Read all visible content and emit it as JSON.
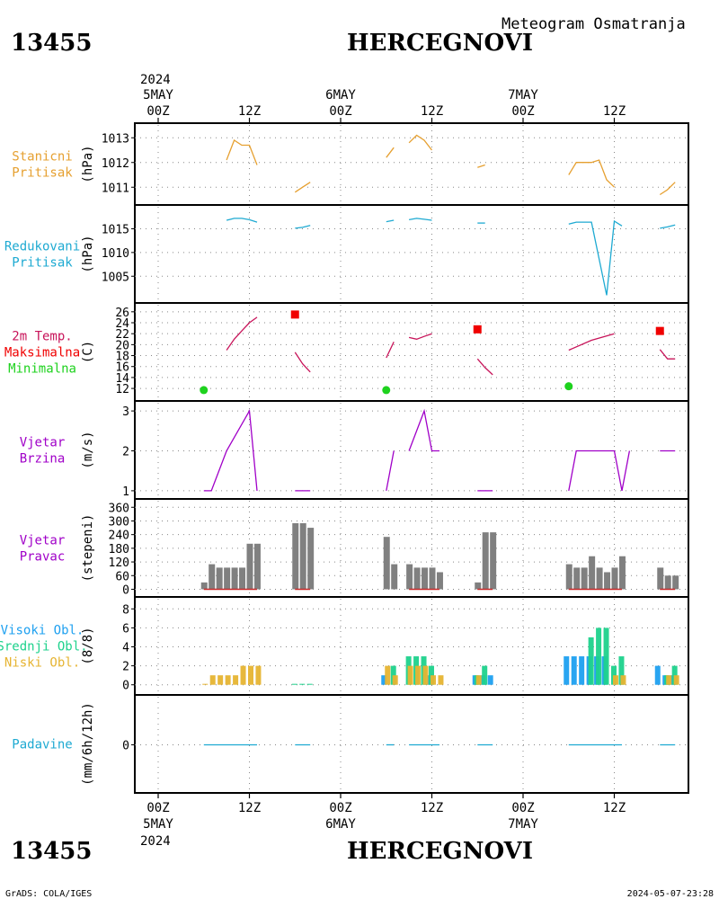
{
  "header": {
    "station_id": "13455",
    "station_name": "HERCEGNOVI",
    "product": "Meteogram Osmatranja"
  },
  "footer": {
    "credit": "GrADS: COLA/IGES",
    "timestamp": "2024-05-07-23:28"
  },
  "time_axis": {
    "year": "2024",
    "hour_labels": [
      "00Z",
      "12Z",
      "00Z",
      "12Z",
      "00Z",
      "12Z"
    ],
    "day_labels": [
      "5MAY",
      "6MAY",
      "7MAY"
    ],
    "start": "2024-05-05 00Z",
    "end": "2024-05-07 21Z"
  },
  "colors": {
    "station_pressure": "#e6a030",
    "reduced_pressure": "#1eaad2",
    "temperature": "#c8145a",
    "tmax": "#f00000",
    "tmin": "#1ed21e",
    "wind": "#a000c8",
    "wind_dir_bar": "#808080",
    "high_cloud": "#1ea0f0",
    "mid_cloud": "#1ed28c",
    "low_cloud": "#e6b432",
    "precip": "#1eaad2"
  },
  "chart_data": [
    {
      "type": "line",
      "panel": "stanicni-pritisak",
      "label_lines": [
        "Stanicni",
        "Pritisak"
      ],
      "ylabel": "(hPa)",
      "yticks": [
        1011,
        1012,
        1013
      ],
      "ylim": [
        1010.5,
        1013.3
      ],
      "segments": [
        {
          "x": [
            "05 09Z",
            "05 10Z",
            "05 11Z",
            "05 12Z",
            "05 13Z"
          ],
          "y": [
            1012.1,
            1012.9,
            1012.7,
            1012.7,
            1011.9
          ]
        },
        {
          "x": [
            "05 18Z",
            "05 19Z",
            "05 20Z"
          ],
          "y": [
            1010.8,
            1011.0,
            1011.2
          ]
        },
        {
          "x": [
            "06 06Z",
            "06 07Z"
          ],
          "y": [
            1012.2,
            1012.6
          ]
        },
        {
          "x": [
            "06 09Z",
            "06 10Z",
            "06 11Z",
            "06 12Z"
          ],
          "y": [
            1012.8,
            1013.1,
            1012.9,
            1012.5
          ]
        },
        {
          "x": [
            "06 18Z",
            "06 19Z"
          ],
          "y": [
            1011.8,
            1011.9
          ]
        },
        {
          "x": [
            "07 06Z",
            "07 07Z",
            "07 09Z",
            "07 10Z",
            "07 11Z",
            "07 12Z"
          ],
          "y": [
            1011.5,
            1012.0,
            1012.0,
            1012.1,
            1011.3,
            1011.0
          ]
        },
        {
          "x": [
            "07 18Z",
            "07 19Z",
            "07 20Z"
          ],
          "y": [
            1010.7,
            1010.9,
            1011.2
          ]
        }
      ]
    },
    {
      "type": "line",
      "panel": "redukovani-pritisak",
      "label_lines": [
        "Redukovani",
        "Pritisak"
      ],
      "ylabel": "(hPa)",
      "yticks": [
        1005,
        1010,
        1015
      ],
      "ylim": [
        1000.5,
        1018.5
      ],
      "segments": [
        {
          "x": [
            "05 09Z",
            "05 10Z",
            "05 11Z",
            "05 12Z",
            "05 13Z"
          ],
          "y": [
            1016.8,
            1017.2,
            1017.2,
            1016.9,
            1016.4
          ]
        },
        {
          "x": [
            "05 18Z",
            "05 19Z",
            "05 20Z"
          ],
          "y": [
            1015.1,
            1015.3,
            1015.7
          ]
        },
        {
          "x": [
            "06 06Z",
            "06 07Z"
          ],
          "y": [
            1016.5,
            1016.8
          ]
        },
        {
          "x": [
            "06 09Z",
            "06 10Z",
            "06 11Z",
            "06 12Z"
          ],
          "y": [
            1016.9,
            1017.2,
            1017.0,
            1016.8
          ]
        },
        {
          "x": [
            "06 18Z",
            "06 19Z"
          ],
          "y": [
            1016.2,
            1016.2
          ]
        },
        {
          "x": [
            "07 06Z",
            "07 07Z",
            "07 09Z",
            "07 11Z",
            "07 12Z",
            "07 13Z"
          ],
          "y": [
            1016.0,
            1016.4,
            1016.4,
            1001.0,
            1016.6,
            1015.6
          ]
        },
        {
          "x": [
            "07 18Z",
            "07 19Z",
            "07 20Z"
          ],
          "y": [
            1015.1,
            1015.4,
            1015.8
          ]
        }
      ]
    },
    {
      "type": "line",
      "panel": "temperatura",
      "label_lines": [
        "2m Temp.",
        "Maksimalna",
        "Minimalna"
      ],
      "ylabel": "(C)",
      "yticks": [
        12,
        14,
        16,
        18,
        20,
        22,
        24,
        26
      ],
      "ylim": [
        10.7,
        26.3
      ],
      "segments": [
        {
          "x": [
            "05 09Z",
            "05 10Z",
            "05 11Z",
            "05 12Z",
            "05 13Z"
          ],
          "y": [
            19,
            21,
            22.5,
            24,
            25
          ]
        },
        {
          "x": [
            "05 18Z",
            "05 19Z",
            "05 20Z"
          ],
          "y": [
            18.6,
            16.5,
            15
          ]
        },
        {
          "x": [
            "06 06Z",
            "06 07Z"
          ],
          "y": [
            17.6,
            20.5
          ]
        },
        {
          "x": [
            "06 09Z",
            "06 10Z",
            "06 11Z",
            "06 12Z"
          ],
          "y": [
            21.3,
            21,
            21.5,
            22
          ]
        },
        {
          "x": [
            "06 18Z",
            "06 19Z",
            "06 20Z"
          ],
          "y": [
            17.4,
            15.8,
            14.5
          ]
        },
        {
          "x": [
            "07 06Z",
            "07 09Z",
            "07 12Z"
          ],
          "y": [
            19,
            20.8,
            22
          ]
        },
        {
          "x": [
            "07 18Z",
            "07 19Z",
            "07 20Z"
          ],
          "y": [
            19.1,
            17.4,
            17.4
          ]
        }
      ],
      "max_points": {
        "x": [
          "05 18Z",
          "06 18Z",
          "07 18Z"
        ],
        "y": [
          25.5,
          22.8,
          22.5
        ]
      },
      "min_points": {
        "x": [
          "05 06Z",
          "06 06Z",
          "07 06Z"
        ],
        "y": [
          11.7,
          11.7,
          12.4
        ]
      }
    },
    {
      "type": "line",
      "panel": "vjetar-brzina",
      "label_lines": [
        "Vjetar",
        "Brzina"
      ],
      "ylabel": "(m/s)",
      "yticks": [
        1,
        2,
        3
      ],
      "ylim": [
        0.93,
        3.07
      ],
      "segments": [
        {
          "x": [
            "05 06Z",
            "05 07Z",
            "05 09Z",
            "05 12Z",
            "05 13Z"
          ],
          "y": [
            1,
            1,
            2,
            3,
            1
          ]
        },
        {
          "x": [
            "05 18Z",
            "05 20Z"
          ],
          "y": [
            1,
            1
          ]
        },
        {
          "x": [
            "06 06Z",
            "06 07Z"
          ],
          "y": [
            1,
            2
          ]
        },
        {
          "x": [
            "06 09Z",
            "06 11Z",
            "06 12Z",
            "06 13Z"
          ],
          "y": [
            2,
            3,
            2,
            2
          ]
        },
        {
          "x": [
            "06 18Z",
            "06 20Z"
          ],
          "y": [
            1,
            1
          ]
        },
        {
          "x": [
            "07 06Z",
            "07 07Z",
            "07 12Z",
            "07 13Z",
            "07 14Z"
          ],
          "y": [
            1,
            2,
            2,
            1,
            2
          ]
        },
        {
          "x": [
            "07 18Z",
            "07 20Z"
          ],
          "y": [
            2,
            2
          ]
        }
      ]
    },
    {
      "type": "bar",
      "panel": "vjetar-pravac",
      "label_lines": [
        "Vjetar",
        "Pravac"
      ],
      "ylabel": "(stepeni)",
      "yticks": [
        0,
        60,
        120,
        180,
        240,
        300,
        360
      ],
      "ylim": [
        -10,
        365
      ],
      "x": [
        "05 06Z",
        "05 07Z",
        "05 08Z",
        "05 09Z",
        "05 10Z",
        "05 11Z",
        "05 12Z",
        "05 13Z",
        "05 18Z",
        "05 19Z",
        "05 20Z",
        "06 06Z",
        "06 07Z",
        "06 09Z",
        "06 10Z",
        "06 11Z",
        "06 12Z",
        "06 13Z",
        "06 18Z",
        "06 19Z",
        "06 20Z",
        "07 06Z",
        "07 07Z",
        "07 08Z",
        "07 09Z",
        "07 10Z",
        "07 11Z",
        "07 12Z",
        "07 13Z",
        "07 18Z",
        "07 19Z",
        "07 20Z"
      ],
      "values": [
        30,
        110,
        95,
        95,
        95,
        95,
        200,
        200,
        290,
        290,
        270,
        230,
        110,
        110,
        95,
        95,
        95,
        75,
        30,
        250,
        250,
        110,
        95,
        95,
        145,
        95,
        75,
        95,
        145,
        95,
        60,
        60
      ]
    },
    {
      "type": "bar",
      "panel": "oblaci",
      "label_lines": [
        "Visoki Obl.",
        "Srednji Obl.",
        "Niski Obl."
      ],
      "ylabel": "(8/8)",
      "yticks": [
        0,
        2,
        4,
        6,
        8
      ],
      "ylim": [
        -0.5,
        8.5
      ],
      "series": [
        {
          "name": "Visoki Obl.",
          "x": [
            "06 06Z",
            "06 12Z",
            "06 18Z",
            "06 19Z",
            "06 20Z",
            "07 06Z",
            "07 07Z",
            "07 08Z",
            "07 09Z",
            "07 10Z",
            "07 11Z",
            "07 12Z",
            "07 13Z",
            "07 18Z",
            "07 19Z",
            "07 20Z"
          ],
          "values": [
            1,
            1,
            1,
            1,
            1,
            3,
            3,
            3,
            3,
            3,
            3,
            0,
            0,
            2,
            1,
            1
          ]
        },
        {
          "name": "Srednji Obl.",
          "x": [
            "05 18Z",
            "05 19Z",
            "05 20Z",
            "06 07Z",
            "06 09Z",
            "06 10Z",
            "06 11Z",
            "06 12Z",
            "06 18Z",
            "06 19Z",
            "07 09Z",
            "07 10Z",
            "07 11Z",
            "07 12Z",
            "07 13Z",
            "07 18Z",
            "07 19Z",
            "07 20Z"
          ],
          "values": [
            0.1,
            0.1,
            0.1,
            2,
            3,
            3,
            3,
            2,
            1,
            2,
            5,
            6,
            6,
            2,
            3,
            0,
            1,
            2
          ]
        },
        {
          "name": "Niski Obl.",
          "x": [
            "05 06Z",
            "05 07Z",
            "05 08Z",
            "05 09Z",
            "05 10Z",
            "05 11Z",
            "05 12Z",
            "05 13Z",
            "06 06Z",
            "06 07Z",
            "06 09Z",
            "06 10Z",
            "06 11Z",
            "06 12Z",
            "06 13Z",
            "06 18Z",
            "07 12Z",
            "07 13Z",
            "07 19Z",
            "07 20Z"
          ],
          "values": [
            0.1,
            1,
            1,
            1,
            1,
            2,
            2,
            2,
            2,
            1,
            2,
            2,
            2,
            1,
            1,
            1,
            1,
            1,
            1,
            1
          ]
        }
      ]
    },
    {
      "type": "line",
      "panel": "padavine",
      "label_lines": [
        "Padavine"
      ],
      "ylabel": "(mm/6h/12h)",
      "yticks": [
        0
      ],
      "ylim": [
        -1,
        1
      ],
      "segments": [
        {
          "x": [
            "05 06Z",
            "05 13Z"
          ],
          "y": [
            0,
            0
          ]
        },
        {
          "x": [
            "05 18Z",
            "05 20Z"
          ],
          "y": [
            0,
            0
          ]
        },
        {
          "x": [
            "06 06Z",
            "06 07Z"
          ],
          "y": [
            0,
            0
          ]
        },
        {
          "x": [
            "06 09Z",
            "06 13Z"
          ],
          "y": [
            0,
            0
          ]
        },
        {
          "x": [
            "06 18Z",
            "06 20Z"
          ],
          "y": [
            0,
            0
          ]
        },
        {
          "x": [
            "07 06Z",
            "07 13Z"
          ],
          "y": [
            0,
            0
          ]
        },
        {
          "x": [
            "07 18Z",
            "07 20Z"
          ],
          "y": [
            0,
            0
          ]
        }
      ]
    }
  ]
}
